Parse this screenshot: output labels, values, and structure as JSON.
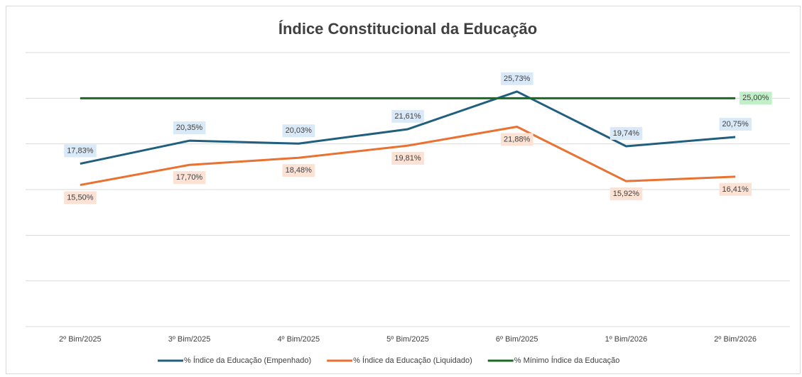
{
  "chart_data": {
    "type": "line",
    "title": "Índice Constitucional da Educação",
    "categories": [
      "2º Bim/2025",
      "3º Bim/2025",
      "4º Bim/2025",
      "5º Bim/2025",
      "6º Bim/2025",
      "1º Bim/2026",
      "2º Bim/2026"
    ],
    "series": [
      {
        "name": "% Índice da Educação (Empenhado)",
        "color": "#215f7f",
        "values": [
          17.83,
          20.35,
          20.03,
          21.61,
          25.73,
          19.74,
          20.75
        ],
        "value_labels": [
          "17,83%",
          "20,35%",
          "20,03%",
          "21,61%",
          "25,73%",
          "19,74%",
          "20,75%"
        ]
      },
      {
        "name": "% Índice da Educação (Liquidado)",
        "color": "#e97132",
        "values": [
          15.5,
          17.7,
          18.48,
          19.81,
          21.88,
          15.92,
          16.41
        ],
        "value_labels": [
          "15,50%",
          "17,70%",
          "18,48%",
          "19,81%",
          "21,88%",
          "15,92%",
          "16,41%"
        ]
      },
      {
        "name": "% Mínimo Índice da Educação",
        "color": "#196b24",
        "values": [
          25,
          25,
          25,
          25,
          25,
          25,
          25
        ],
        "value_labels": [
          null,
          null,
          null,
          null,
          null,
          null,
          "25,00%"
        ]
      }
    ],
    "ylim": [
      0,
      30
    ],
    "yticks": [
      0,
      5,
      10,
      15,
      20,
      25,
      30
    ],
    "grid": true
  }
}
